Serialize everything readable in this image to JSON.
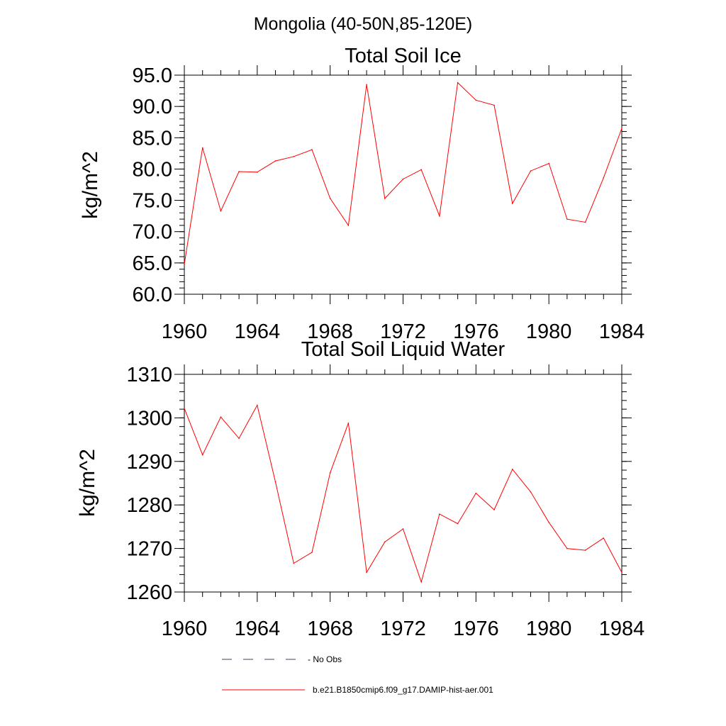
{
  "suptitle": "Mongolia (40-50N,85-120E)",
  "legend": [
    {
      "label": "- No Obs",
      "color": "#404060",
      "style": "dashed"
    },
    {
      "label": "b.e21.B1850cmip6.f09_g17.DAMIP-hist-aer.001",
      "color": "#ff0000",
      "style": "solid"
    }
  ],
  "chart_data": [
    {
      "type": "line",
      "title": "Total Soil Ice",
      "ylabel": "kg/m^2",
      "xlabel": "",
      "xlim": [
        1960,
        1984
      ],
      "ylim": [
        60,
        95
      ],
      "xticks": [
        1960,
        1964,
        1968,
        1972,
        1976,
        1980,
        1984
      ],
      "yticks": [
        "60.0",
        "65.0",
        "70.0",
        "75.0",
        "80.0",
        "85.0",
        "90.0",
        "95.0"
      ],
      "color": "#ff0000",
      "x": [
        1960,
        1961,
        1962,
        1963,
        1964,
        1965,
        1966,
        1967,
        1968,
        1969,
        1970,
        1971,
        1972,
        1973,
        1974,
        1975,
        1976,
        1977,
        1978,
        1979,
        1980,
        1981,
        1982,
        1983,
        1984
      ],
      "y": [
        64.8,
        83.4,
        73.3,
        79.6,
        79.5,
        81.3,
        82.0,
        83.1,
        75.3,
        71.0,
        93.5,
        75.3,
        78.4,
        79.9,
        72.5,
        93.8,
        91.0,
        90.2,
        74.5,
        79.7,
        80.9,
        72.0,
        71.5,
        78.6,
        86.5
      ]
    },
    {
      "type": "line",
      "title": "Total Soil Liquid Water",
      "ylabel": "kg/m^2",
      "xlabel": "",
      "xlim": [
        1960,
        1984
      ],
      "ylim": [
        1260,
        1310
      ],
      "xticks": [
        1960,
        1964,
        1968,
        1972,
        1976,
        1980,
        1984
      ],
      "yticks": [
        "1260",
        "1270",
        "1280",
        "1290",
        "1300",
        "1310"
      ],
      "color": "#ff0000",
      "x": [
        1960,
        1961,
        1962,
        1963,
        1964,
        1965,
        1966,
        1967,
        1968,
        1969,
        1970,
        1971,
        1972,
        1973,
        1974,
        1975,
        1976,
        1977,
        1978,
        1979,
        1980,
        1981,
        1982,
        1983,
        1984
      ],
      "y": [
        1302.2,
        1291.5,
        1300.2,
        1295.3,
        1302.9,
        1285.3,
        1266.6,
        1269.1,
        1287.4,
        1298.8,
        1264.5,
        1271.5,
        1274.5,
        1262.3,
        1277.9,
        1275.7,
        1282.7,
        1278.9,
        1288.2,
        1283.0,
        1276.0,
        1270.0,
        1269.6,
        1272.4,
        1264.5
      ]
    }
  ]
}
